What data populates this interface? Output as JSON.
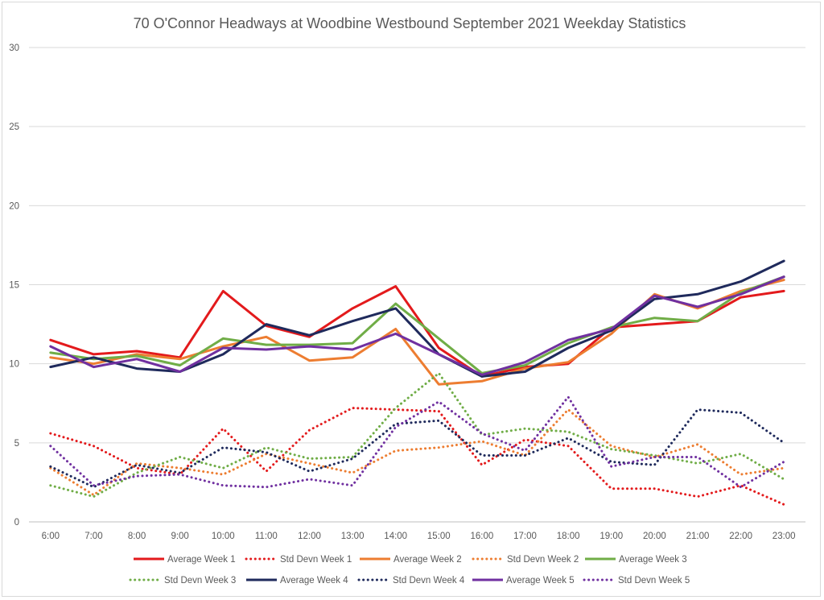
{
  "chart_data": {
    "type": "line",
    "title": "70 O'Connor Headways at Woodbine Westbound September 2021 Weekday Statistics",
    "xlabel": "",
    "ylabel": "",
    "categories": [
      "6:00",
      "7:00",
      "8:00",
      "9:00",
      "10:00",
      "11:00",
      "12:00",
      "13:00",
      "14:00",
      "15:00",
      "16:00",
      "17:00",
      "18:00",
      "19:00",
      "20:00",
      "21:00",
      "22:00",
      "23:00"
    ],
    "ylim": [
      0,
      30
    ],
    "yticks": [
      0,
      5,
      10,
      15,
      20,
      25,
      30
    ],
    "grid": true,
    "legend_position": "bottom",
    "series": [
      {
        "name": "Average Week 1",
        "color": "#e31a1c",
        "style": "solid",
        "values": [
          11.5,
          10.6,
          10.8,
          10.4,
          14.6,
          12.4,
          11.7,
          13.5,
          14.9,
          11.0,
          9.2,
          9.8,
          10.0,
          12.3,
          12.5,
          12.7,
          14.2,
          14.6
        ]
      },
      {
        "name": "Std Devn Week 1",
        "color": "#e31a1c",
        "style": "dotted",
        "values": [
          5.6,
          4.8,
          3.4,
          3.0,
          5.9,
          3.2,
          5.8,
          7.2,
          7.1,
          7.0,
          3.6,
          5.2,
          4.8,
          2.1,
          2.1,
          1.6,
          2.3,
          1.1
        ]
      },
      {
        "name": "Average Week 2",
        "color": "#ed7d31",
        "style": "solid",
        "values": [
          10.4,
          10.0,
          10.6,
          10.3,
          11.1,
          11.7,
          10.2,
          10.4,
          12.2,
          8.7,
          8.9,
          9.7,
          10.1,
          11.9,
          14.4,
          13.5,
          14.6,
          15.3
        ]
      },
      {
        "name": "Std Devn Week 2",
        "color": "#ed7d31",
        "style": "dotted",
        "values": [
          3.4,
          1.7,
          3.7,
          3.4,
          3.0,
          4.3,
          3.7,
          3.1,
          4.5,
          4.7,
          5.1,
          4.2,
          7.1,
          4.8,
          4.1,
          4.9,
          3.0,
          3.4
        ]
      },
      {
        "name": "Average Week 3",
        "color": "#70ad47",
        "style": "solid",
        "values": [
          10.7,
          10.3,
          10.5,
          9.9,
          11.6,
          11.2,
          11.2,
          11.3,
          13.8,
          11.6,
          9.4,
          9.9,
          11.3,
          12.3,
          12.9,
          12.7,
          14.5,
          15.5
        ]
      },
      {
        "name": "Std Devn Week 3",
        "color": "#70ad47",
        "style": "dotted",
        "values": [
          2.3,
          1.6,
          3.1,
          4.1,
          3.4,
          4.7,
          4.0,
          4.1,
          7.2,
          9.4,
          5.5,
          5.9,
          5.7,
          4.6,
          4.2,
          3.7,
          4.3,
          2.7
        ]
      },
      {
        "name": "Average Week 4",
        "color": "#1f2a5c",
        "style": "solid",
        "values": [
          9.8,
          10.4,
          9.7,
          9.5,
          10.6,
          12.5,
          11.8,
          12.7,
          13.5,
          10.6,
          9.2,
          9.5,
          11.0,
          12.1,
          14.1,
          14.4,
          15.2,
          16.5
        ]
      },
      {
        "name": "Std Devn Week 4",
        "color": "#1f2a5c",
        "style": "dotted",
        "values": [
          3.5,
          2.2,
          3.6,
          3.1,
          4.7,
          4.4,
          3.2,
          4.0,
          6.2,
          6.4,
          4.2,
          4.2,
          5.3,
          3.8,
          3.6,
          7.1,
          6.9,
          5.0
        ]
      },
      {
        "name": "Average Week 5",
        "color": "#7030a0",
        "style": "solid",
        "values": [
          11.1,
          9.8,
          10.3,
          9.5,
          11.0,
          10.9,
          11.1,
          10.9,
          11.9,
          10.6,
          9.3,
          10.1,
          11.5,
          12.2,
          14.3,
          13.6,
          14.4,
          15.5
        ]
      },
      {
        "name": "Std Devn Week 5",
        "color": "#7030a0",
        "style": "dotted",
        "values": [
          4.8,
          2.3,
          2.9,
          3.0,
          2.3,
          2.2,
          2.7,
          2.3,
          6.0,
          7.6,
          5.6,
          4.5,
          7.9,
          3.5,
          4.1,
          4.1,
          2.2,
          3.8
        ]
      }
    ]
  }
}
